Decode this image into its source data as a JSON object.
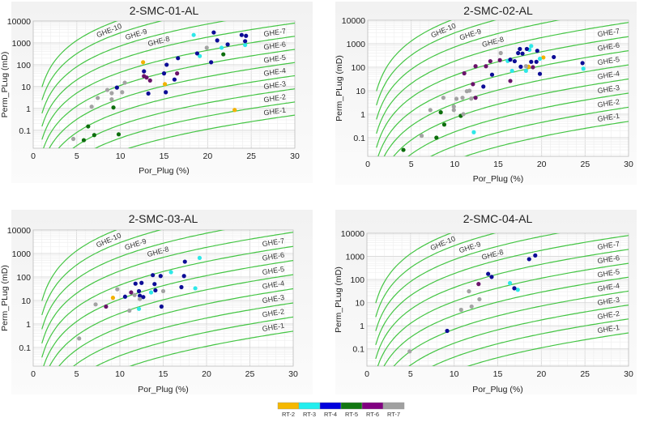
{
  "colors": {
    "RT-2": "#f2b200",
    "RT-3": "#2ee8e8",
    "RT-4": "#0c0c96",
    "RT-5": "#0d6e0d",
    "RT-6": "#6a146a",
    "RT-7": "#a3a3a3",
    "ghe_line": "#44c544"
  },
  "legend": {
    "position": "bottom-center",
    "items": [
      {
        "label": "RT-2",
        "color": "#f5b800"
      },
      {
        "label": "RT-3",
        "color": "#22eeee"
      },
      {
        "label": "RT-4",
        "color": "#0000dd"
      },
      {
        "label": "RT-5",
        "color": "#117711"
      },
      {
        "label": "RT-6",
        "color": "#800080"
      },
      {
        "label": "RT-7",
        "color": "#a0a0a0"
      }
    ]
  },
  "chart_data": [
    {
      "type": "scatter",
      "title": "2-SMC-01-AL",
      "xlabel": "Por_Plug (%)",
      "ylabel": "Perm_PLug (mD)",
      "xlim": [
        0,
        30
      ],
      "ylim": [
        0.015,
        10000
      ],
      "yscale": "log",
      "grid": true,
      "xticks": [
        "0",
        "5",
        "10",
        "15",
        "20",
        "25",
        "30"
      ],
      "yticks": [
        "10000",
        "1000",
        "100",
        "10",
        "1",
        "0.1"
      ],
      "ghe_labels": [
        "GHE-1",
        "GHE-2",
        "GHE-3",
        "GHE-4",
        "GHE-5",
        "GHE-6",
        "GHE-7",
        "GHE-8",
        "GHE-9",
        "GHE-10"
      ],
      "series": [
        {
          "name": "RT-2",
          "points": [
            [
              12.6,
              130
            ],
            [
              15.1,
              13
            ],
            [
              23.1,
              0.85
            ]
          ]
        },
        {
          "name": "RT-3",
          "points": [
            [
              18.4,
              2300
            ],
            [
              19.1,
              250
            ],
            [
              21.6,
              600
            ],
            [
              24.3,
              800
            ]
          ]
        },
        {
          "name": "RT-4",
          "points": [
            [
              9.6,
              9
            ],
            [
              12.7,
              50
            ],
            [
              13.2,
              4.8
            ],
            [
              15.3,
              100
            ],
            [
              15.0,
              40
            ],
            [
              15.2,
              5.5
            ],
            [
              16.2,
              21
            ],
            [
              16.6,
              200
            ],
            [
              18.8,
              330
            ],
            [
              20.4,
              130
            ],
            [
              20.7,
              3000
            ],
            [
              21.1,
              1300
            ],
            [
              22.3,
              850
            ],
            [
              23.9,
              2300
            ],
            [
              24.4,
              2100
            ],
            [
              24.3,
              1200
            ]
          ]
        },
        {
          "name": "RT-5",
          "points": [
            [
              5.8,
              0.035
            ],
            [
              6.3,
              0.15
            ],
            [
              7.0,
              0.06
            ],
            [
              9.2,
              1.1
            ],
            [
              9.8,
              0.065
            ],
            [
              21.8,
              300
            ]
          ]
        },
        {
          "name": "RT-6",
          "points": [
            [
              12.7,
              30
            ],
            [
              13.0,
              26
            ],
            [
              13.4,
              19
            ],
            [
              16.5,
              40
            ]
          ]
        },
        {
          "name": "RT-7",
          "points": [
            [
              4.6,
              0.04
            ],
            [
              6.7,
              1.2
            ],
            [
              7.4,
              3
            ],
            [
              8.5,
              7
            ],
            [
              9.0,
              5
            ],
            [
              9.0,
              2.6
            ],
            [
              10.2,
              5.5
            ],
            [
              10.5,
              15
            ],
            [
              19.9,
              600
            ]
          ]
        }
      ]
    },
    {
      "type": "scatter",
      "title": "2-SMC-02-AL",
      "xlabel": "Por_Plug (%)",
      "ylabel": "Perm_PLug (mD)",
      "xlim": [
        0,
        30
      ],
      "ylim": [
        0.016,
        10000
      ],
      "yscale": "log",
      "grid": true,
      "xticks": [
        "0",
        "5",
        "10",
        "15",
        "20",
        "25",
        "30"
      ],
      "yticks": [
        "10000",
        "1000",
        "100",
        "10",
        "1",
        "0.1"
      ],
      "ghe_labels": [
        "GHE-1",
        "GHE-2",
        "GHE-3",
        "GHE-4",
        "GHE-5",
        "GHE-6",
        "GHE-7",
        "GHE-8",
        "GHE-9",
        "GHE-10"
      ],
      "series": [
        {
          "name": "RT-2",
          "points": [
            [
              18.5,
              105
            ],
            [
              20.2,
              260
            ]
          ]
        },
        {
          "name": "RT-3",
          "points": [
            [
              12.2,
              0.17
            ],
            [
              16.1,
              185
            ],
            [
              16.6,
              70
            ],
            [
              18.2,
              70
            ],
            [
              18.6,
              550
            ],
            [
              18.8,
              800
            ],
            [
              19.8,
              230
            ],
            [
              24.8,
              87
            ]
          ]
        },
        {
          "name": "RT-4",
          "points": [
            [
              13.3,
              15
            ],
            [
              14.3,
              48
            ],
            [
              16.4,
              210
            ],
            [
              16.9,
              180
            ],
            [
              17.3,
              400
            ],
            [
              17.5,
              600
            ],
            [
              17.6,
              105
            ],
            [
              17.8,
              380
            ],
            [
              18.3,
              600
            ],
            [
              18.8,
              170
            ],
            [
              19.4,
              170
            ],
            [
              19.5,
              500
            ],
            [
              19.8,
              52
            ],
            [
              21.4,
              270
            ],
            [
              24.7,
              150
            ]
          ]
        },
        {
          "name": "RT-5",
          "points": [
            [
              4.1,
              0.03
            ],
            [
              7.9,
              0.1
            ],
            [
              8.8,
              0.36
            ],
            [
              8.4,
              1.2
            ],
            [
              10.7,
              0.85
            ]
          ]
        },
        {
          "name": "RT-6",
          "points": [
            [
              11.1,
              55
            ],
            [
              12.1,
              19
            ],
            [
              12.4,
              5
            ],
            [
              12.4,
              110
            ],
            [
              13.6,
              110
            ],
            [
              14.1,
              180
            ],
            [
              15.2,
              200
            ],
            [
              16.4,
              26
            ],
            [
              19.0,
              100
            ]
          ]
        },
        {
          "name": "RT-7",
          "points": [
            [
              6.2,
              0.12
            ],
            [
              7.2,
              1.5
            ],
            [
              8.7,
              5
            ],
            [
              9.9,
              2.1
            ],
            [
              9.9,
              1.5
            ],
            [
              10.2,
              4.5
            ],
            [
              10.9,
              5
            ],
            [
              11.0,
              1
            ],
            [
              11.4,
              9.5
            ],
            [
              11.7,
              10
            ],
            [
              11.9,
              4.6
            ],
            [
              15.3,
              400
            ],
            [
              18.2,
              110
            ]
          ]
        }
      ]
    },
    {
      "type": "scatter",
      "title": "2-SMC-03-AL",
      "xlabel": "Por_Plug (%)",
      "ylabel": "Perm_PLug (mD)",
      "xlim": [
        0,
        30
      ],
      "ylim": [
        0.016,
        10000
      ],
      "yscale": "log",
      "grid": true,
      "xticks": [
        "0",
        "5",
        "10",
        "15",
        "20",
        "25",
        "30"
      ],
      "yticks": [
        "10000",
        "1000",
        "100",
        "10",
        "1",
        "0.1"
      ],
      "ghe_labels": [
        "GHE-1",
        "GHE-2",
        "GHE-3",
        "GHE-4",
        "GHE-5",
        "GHE-6",
        "GHE-7",
        "GHE-8",
        "GHE-9",
        "GHE-10"
      ],
      "series": [
        {
          "name": "RT-2",
          "points": [
            [
              9.2,
              13
            ]
          ]
        },
        {
          "name": "RT-3",
          "points": [
            [
              12.2,
              4.4
            ],
            [
              13.6,
              22
            ],
            [
              15.9,
              160
            ],
            [
              18.7,
              33
            ],
            [
              19.2,
              650
            ]
          ]
        },
        {
          "name": "RT-4",
          "points": [
            [
              10.6,
              14.5
            ],
            [
              11.8,
              52
            ],
            [
              12.2,
              25
            ],
            [
              12.3,
              16
            ],
            [
              12.5,
              56
            ],
            [
              12.7,
              14
            ],
            [
              14.0,
              50
            ],
            [
              13.8,
              120
            ],
            [
              14.1,
              27
            ],
            [
              14.7,
              110
            ],
            [
              14.8,
              5.5
            ],
            [
              17.1,
              37
            ],
            [
              17.5,
              450
            ],
            [
              17.4,
              110
            ]
          ]
        },
        {
          "name": "RT-5",
          "points": []
        },
        {
          "name": "RT-6",
          "points": [
            [
              8.4,
              5.5
            ],
            [
              11.3,
              22
            ]
          ]
        },
        {
          "name": "RT-7",
          "points": [
            [
              5.3,
              0.24
            ],
            [
              7.2,
              6.8
            ],
            [
              9.7,
              30
            ],
            [
              11.1,
              3.7
            ],
            [
              11.7,
              17
            ],
            [
              12.3,
              11.5
            ],
            [
              15.0,
              25
            ]
          ]
        }
      ]
    },
    {
      "type": "scatter",
      "title": "2-SMC-04-AL",
      "xlabel": "Por_Plug (%)",
      "ylabel": "Perm_PLug (mD)",
      "xlim": [
        0,
        30
      ],
      "ylim": [
        0.018,
        10000
      ],
      "yscale": "log",
      "grid": true,
      "xticks": [
        "0",
        "5",
        "10",
        "15",
        "20",
        "25",
        "30"
      ],
      "yticks": [
        "10000",
        "1000",
        "100",
        "10",
        "1",
        "0.1"
      ],
      "ghe_labels": [
        "GHE-1",
        "GHE-2",
        "GHE-3",
        "GHE-4",
        "GHE-5",
        "GHE-6",
        "GHE-7",
        "GHE-8",
        "GHE-9",
        "GHE-10"
      ],
      "series": [
        {
          "name": "RT-2",
          "points": []
        },
        {
          "name": "RT-3",
          "points": [
            [
              16.4,
              70
            ],
            [
              17.3,
              36
            ]
          ]
        },
        {
          "name": "RT-4",
          "points": [
            [
              9.2,
              0.6
            ],
            [
              13.9,
              175
            ],
            [
              14.3,
              130
            ],
            [
              16.9,
              42
            ],
            [
              18.6,
              760
            ],
            [
              19.3,
              1100
            ]
          ]
        },
        {
          "name": "RT-5",
          "points": []
        },
        {
          "name": "RT-6",
          "points": [
            [
              12.8,
              64
            ]
          ]
        },
        {
          "name": "RT-7",
          "points": [
            [
              4.9,
              0.078
            ],
            [
              10.8,
              4.9
            ],
            [
              11.7,
              31
            ],
            [
              12.0,
              6.8
            ],
            [
              12.9,
              14
            ]
          ]
        }
      ]
    }
  ]
}
